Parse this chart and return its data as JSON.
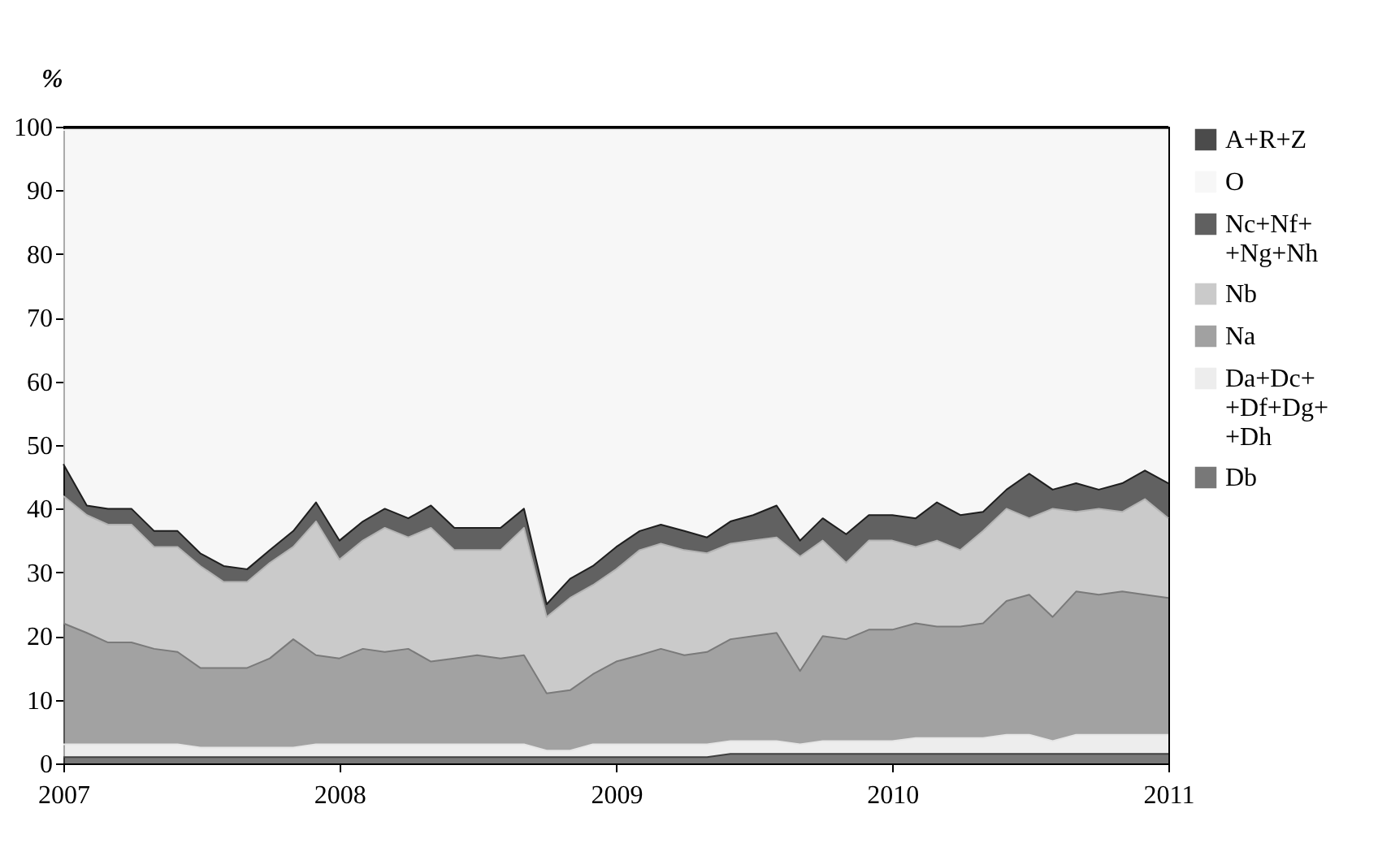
{
  "chart_data": {
    "type": "area",
    "stacked": true,
    "ylabel": "%",
    "x": [
      "2007-01",
      "2007-02",
      "2007-03",
      "2007-04",
      "2007-05",
      "2007-06",
      "2007-07",
      "2007-08",
      "2007-09",
      "2007-10",
      "2007-11",
      "2007-12",
      "2008-01",
      "2008-02",
      "2008-03",
      "2008-04",
      "2008-05",
      "2008-06",
      "2008-07",
      "2008-08",
      "2008-09",
      "2008-10",
      "2008-11",
      "2008-12",
      "2009-01",
      "2009-02",
      "2009-03",
      "2009-04",
      "2009-05",
      "2009-06",
      "2009-07",
      "2009-08",
      "2009-09",
      "2009-10",
      "2009-11",
      "2009-12",
      "2010-01",
      "2010-02",
      "2010-03",
      "2010-04",
      "2010-05",
      "2010-06",
      "2010-07",
      "2010-08",
      "2010-09",
      "2010-10",
      "2010-11",
      "2010-12",
      "2011-01"
    ],
    "xlim": [
      "2007-01",
      "2011-01"
    ],
    "xticks": [
      {
        "value": "2007-01",
        "label": "2007"
      },
      {
        "value": "2008-01",
        "label": "2008"
      },
      {
        "value": "2009-01",
        "label": "2009"
      },
      {
        "value": "2010-01",
        "label": "2010"
      },
      {
        "value": "2011-01",
        "label": "2011"
      }
    ],
    "ylim": [
      0,
      100
    ],
    "yticks": [
      0,
      10,
      20,
      30,
      40,
      50,
      60,
      70,
      80,
      90,
      100
    ],
    "grid": false,
    "legend": "right",
    "series": [
      {
        "name": "Db",
        "color": "#404040",
        "values": [
          1,
          1,
          1,
          1,
          1,
          1,
          1,
          1,
          1,
          1,
          1,
          1,
          1,
          1,
          1,
          1,
          1,
          1,
          1,
          1,
          1,
          1,
          1,
          1,
          1,
          1,
          1,
          1,
          1,
          1.5,
          1.5,
          1.5,
          1.5,
          1.5,
          1.5,
          1.5,
          1.5,
          1.5,
          1.5,
          1.5,
          1.5,
          1.5,
          1.5,
          1.5,
          1.5,
          1.5,
          1.5,
          1.5,
          1.5
        ]
      },
      {
        "name": "Da+Dc++Df+Dg++Dh",
        "color": "#e6e6e6",
        "values": [
          2,
          2,
          2,
          2,
          2,
          2,
          1.5,
          1.5,
          1.5,
          1.5,
          1.5,
          2,
          2,
          2,
          2,
          2,
          2,
          2,
          2,
          2,
          2,
          1,
          1,
          2,
          2,
          2,
          2,
          2,
          2,
          2,
          2,
          2,
          1.5,
          2,
          2,
          2,
          2,
          2.5,
          2.5,
          2.5,
          2.5,
          3,
          3,
          2,
          3,
          3,
          3,
          3,
          3
        ]
      },
      {
        "name": "Na",
        "color": "#7a7a7a",
        "values": [
          19,
          17.5,
          16,
          16,
          15,
          14.5,
          12.5,
          12.5,
          12.5,
          14,
          17,
          14,
          13.5,
          15,
          14.5,
          15,
          13,
          13.5,
          14,
          13.5,
          14,
          9,
          9.5,
          11,
          13,
          14,
          15,
          14,
          14.5,
          16,
          16.5,
          17,
          11.5,
          16.5,
          16,
          17.5,
          17.5,
          18,
          17.5,
          17.5,
          18,
          21,
          22,
          19.5,
          22.5,
          22,
          22.5,
          22,
          21.5
        ]
      },
      {
        "name": "Nb",
        "color": "#b4b4b4",
        "values": [
          20,
          18.5,
          18.5,
          18.5,
          16,
          16.5,
          16,
          13.5,
          13.5,
          15,
          14.5,
          21,
          15.5,
          17,
          19.5,
          17.5,
          21,
          17,
          16.5,
          17,
          20,
          12,
          14.5,
          14,
          14.5,
          16.5,
          16.5,
          16.5,
          15.5,
          15,
          15,
          15,
          18,
          15,
          12,
          14,
          14,
          12,
          13.5,
          12,
          14.5,
          14.5,
          12,
          17,
          12.5,
          13.5,
          12.5,
          15,
          12.5
        ]
      },
      {
        "name": "Nc+Nf++Ng+Nh",
        "color": "#1e1e1e",
        "values": [
          5,
          1.5,
          2.5,
          2.5,
          2.5,
          2.5,
          2,
          2.5,
          2,
          2,
          2.5,
          3,
          3,
          3,
          3,
          3,
          3.5,
          3.5,
          3.5,
          3.5,
          3,
          2,
          3,
          3,
          3.5,
          3,
          3,
          3,
          2.5,
          3.5,
          4,
          5,
          2.5,
          3.5,
          4.5,
          4,
          4,
          4.5,
          6,
          5.5,
          3,
          3,
          7,
          3,
          4.5,
          3,
          4.5,
          4.5,
          5.5
        ]
      },
      {
        "name": "O",
        "color": "#f4f4f4",
        "values": [
          52.5,
          59,
          59.5,
          59.5,
          63,
          63,
          66.5,
          68.5,
          69,
          66,
          63,
          58.5,
          64.5,
          61.5,
          59.5,
          61,
          59,
          62.5,
          62.5,
          62.5,
          59.5,
          74.5,
          70.5,
          68.5,
          65.5,
          63,
          62,
          63,
          64,
          61.5,
          60.5,
          59,
          64.5,
          61,
          63.5,
          60.5,
          60.5,
          61,
          58.5,
          60.5,
          60,
          56.5,
          54,
          56.5,
          55.5,
          56.5,
          55.5,
          53.5,
          55.5
        ]
      },
      {
        "name": "A+R+Z",
        "color": "#000000",
        "values": [
          0.5,
          0.5,
          0.5,
          0.5,
          0.5,
          0.5,
          0.5,
          0.5,
          0.5,
          0.5,
          0.5,
          0.5,
          0.5,
          0.5,
          0.5,
          0.5,
          0.5,
          0.5,
          0.5,
          0.5,
          0.5,
          0.5,
          0.5,
          0.5,
          0.5,
          0.5,
          0.5,
          0.5,
          0.5,
          0.5,
          0.5,
          0.5,
          0.5,
          0.5,
          0.5,
          0.5,
          0.5,
          0.5,
          0.5,
          0.5,
          0.5,
          0.5,
          0.5,
          0.5,
          0.5,
          0.5,
          0.5,
          0.5,
          0.5
        ]
      }
    ]
  }
}
